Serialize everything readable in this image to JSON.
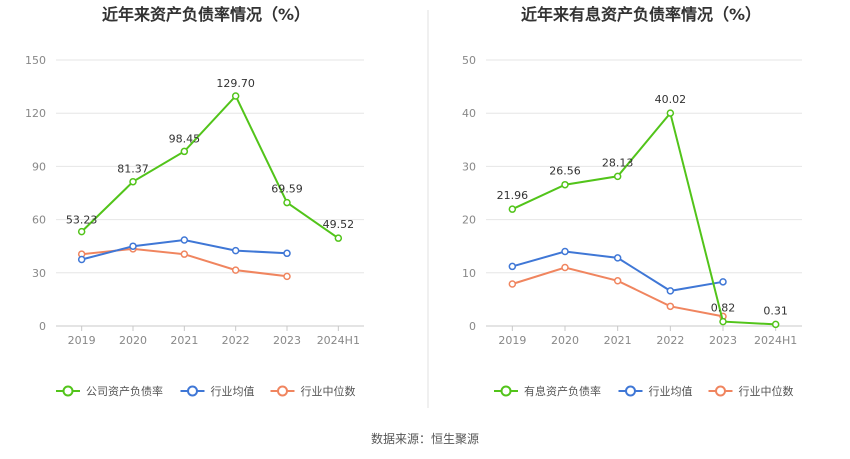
{
  "colors": {
    "series": [
      "#52c41a",
      "#3f77d6",
      "#f0855f"
    ],
    "grid": "#e6e6e6",
    "axis": "#c8c8c8",
    "divider": "#e2e2e2"
  },
  "source": "数据来源：恒生聚源",
  "chart_data": [
    {
      "type": "line",
      "title": "近年来资产负债率情况（%）",
      "categories": [
        "2019",
        "2020",
        "2021",
        "2022",
        "2023",
        "2024H1"
      ],
      "ylim": [
        0,
        150
      ],
      "yticks": [
        "0",
        "30",
        "60",
        "90",
        "120",
        "150"
      ],
      "grid": true,
      "legend_position": "bottom",
      "series": [
        {
          "name": "公司资产负债率",
          "values": [
            53.23,
            81.37,
            98.45,
            129.7,
            69.59,
            49.52
          ],
          "labels": [
            "53.23",
            "81.37",
            "98.45",
            "129.70",
            "69.59",
            "49.52"
          ]
        },
        {
          "name": "行业均值",
          "values": [
            37.5,
            45.0,
            48.5,
            42.5,
            41.0,
            null
          ]
        },
        {
          "name": "行业中位数",
          "values": [
            40.5,
            43.5,
            40.5,
            31.5,
            28.0,
            null
          ]
        }
      ]
    },
    {
      "type": "line",
      "title": "近年来有息资产负债率情况（%）",
      "categories": [
        "2019",
        "2020",
        "2021",
        "2022",
        "2023",
        "2024H1"
      ],
      "ylim": [
        0,
        50
      ],
      "yticks": [
        "0",
        "10",
        "20",
        "30",
        "40",
        "50"
      ],
      "grid": true,
      "legend_position": "bottom",
      "series": [
        {
          "name": "有息资产负债率",
          "values": [
            21.96,
            26.56,
            28.13,
            40.02,
            0.82,
            0.31
          ],
          "labels": [
            "21.96",
            "26.56",
            "28.13",
            "40.02",
            "0.82",
            "0.31"
          ]
        },
        {
          "name": "行业均值",
          "values": [
            11.2,
            14.0,
            12.8,
            6.6,
            8.3,
            null
          ]
        },
        {
          "name": "行业中位数",
          "values": [
            7.9,
            11.0,
            8.5,
            3.7,
            1.8,
            null
          ]
        }
      ]
    }
  ]
}
